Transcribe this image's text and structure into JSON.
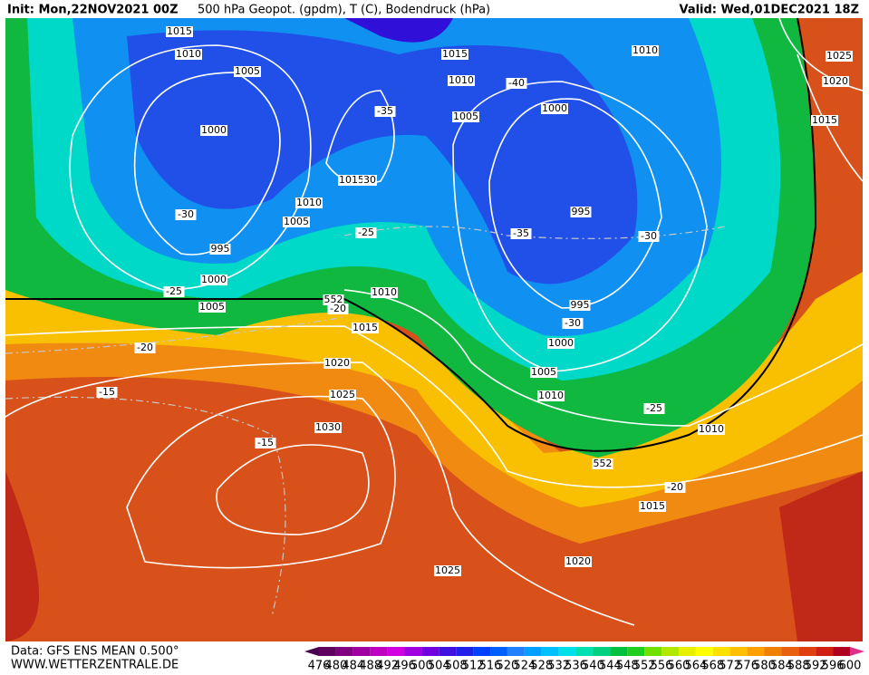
{
  "header": {
    "init": "Init: Mon,22NOV2021 00Z",
    "title": "500 hPa Geopot. (gpdm), T (C), Bodendruck (hPa)",
    "valid": "Valid: Wed,01DEC2021 18Z"
  },
  "map": {
    "labels": [
      "1015",
      "1010",
      "1005",
      "1000",
      "-30",
      "995",
      "1000",
      "1005",
      "-25",
      "552",
      "-20",
      "1010",
      "1015",
      "-20",
      "1020",
      "1025",
      "-15",
      "1030",
      "-15",
      "-35",
      "1015",
      "30",
      "1010",
      "1005",
      "-25",
      "1015",
      "1010",
      "-40",
      "1005",
      "1000",
      "995",
      "-35",
      "-30",
      "995",
      "-30",
      "1000",
      "1005",
      "1010",
      "-25",
      "1010",
      "552",
      "-20",
      "1015",
      "1020",
      "1025",
      "1010",
      "1025",
      "1020",
      "1015"
    ]
  },
  "footer": {
    "source": "Data: GFS ENS MEAN 0.500°",
    "site": "WWW.WETTERZENTRALE.DE"
  },
  "colorbar": {
    "levels": [
      476,
      480,
      484,
      488,
      492,
      496,
      500,
      504,
      508,
      512,
      516,
      520,
      524,
      528,
      532,
      536,
      540,
      544,
      548,
      552,
      556,
      560,
      564,
      568,
      572,
      576,
      580,
      584,
      588,
      592,
      596,
      600
    ],
    "colors": [
      "#4a0050",
      "#600060",
      "#800080",
      "#a000a0",
      "#c000c0",
      "#d000e0",
      "#a000e0",
      "#7000e0",
      "#4010e0",
      "#2020e8",
      "#0040ff",
      "#0060ff",
      "#2080ff",
      "#00a0ff",
      "#00c0ff",
      "#00e0e8",
      "#00e0b0",
      "#00d080",
      "#00c040",
      "#20d020",
      "#70e000",
      "#b0e800",
      "#e8f000",
      "#ffff00",
      "#ffe000",
      "#ffc000",
      "#ffa000",
      "#f08000",
      "#e86010",
      "#e04010",
      "#d02010",
      "#b00020",
      "#e0308a"
    ]
  }
}
